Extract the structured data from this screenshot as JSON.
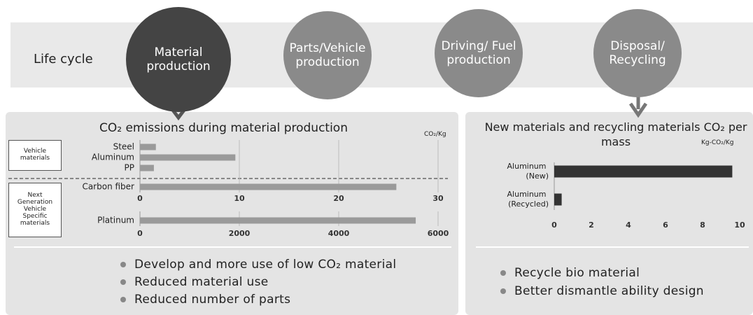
{
  "lifecycle": {
    "label": "Life cycle",
    "stages": [
      "Material production",
      "Parts/Vehicle production",
      "Driving/ Fuel production",
      "Disposal/ Recycling"
    ]
  },
  "left_panel": {
    "title": "CO₂ emissions during material production",
    "unit": "CO₂/Kg",
    "groups": [
      "Vehicle materials",
      "Next Generation Vehicle Specific materials"
    ],
    "bullets": [
      "Develop and more use of low CO₂ material",
      "Reduced material use",
      "Reduced number of parts"
    ]
  },
  "right_panel": {
    "title": "New materials and recycling materials CO₂ per mass",
    "unit": "Kg-CO₂/Kg",
    "bullets": [
      "Recycle bio material",
      "Better dismantle ability design"
    ]
  },
  "chart_data": [
    {
      "type": "bar",
      "orientation": "horizontal",
      "categories": [
        "Steel",
        "Aluminum",
        "PP",
        "Carbon fiber"
      ],
      "values": [
        1.6,
        9.6,
        1.4,
        25.8
      ],
      "color": "#9a9a9a",
      "xlim": [
        0,
        30
      ],
      "xticks": [
        0,
        10,
        20,
        30
      ],
      "grid": true
    },
    {
      "type": "bar",
      "orientation": "horizontal",
      "categories": [
        "Platinum"
      ],
      "values": [
        5550
      ],
      "color": "#9a9a9a",
      "xlim": [
        0,
        6000
      ],
      "xticks": [
        0,
        2000,
        4000,
        6000
      ],
      "grid": true
    },
    {
      "type": "bar",
      "orientation": "horizontal",
      "categories": [
        "Aluminum (New)",
        "Aluminum (Recycled)"
      ],
      "values": [
        9.6,
        0.4
      ],
      "color": "#333333",
      "xlim": [
        0,
        10
      ],
      "xticks": [
        0,
        2,
        4,
        6,
        8,
        10
      ],
      "grid": false
    }
  ]
}
